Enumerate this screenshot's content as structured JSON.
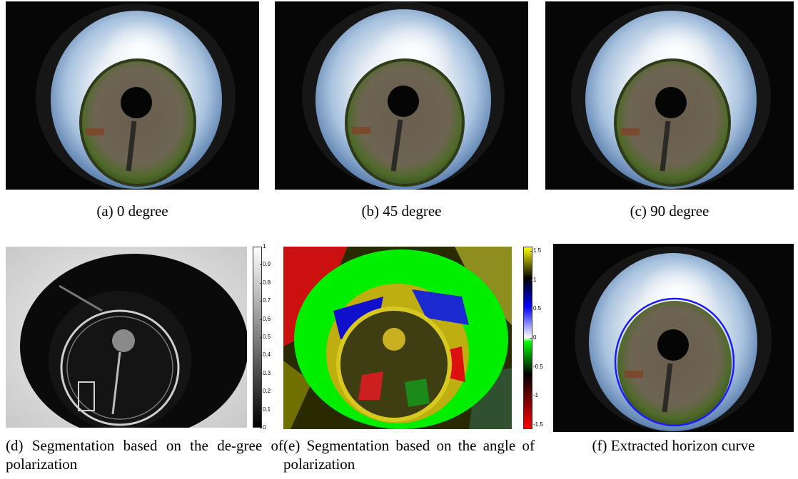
{
  "figure": {
    "panels": [
      {
        "id": "a",
        "caption": "(a) 0 degree"
      },
      {
        "id": "b",
        "caption": "(b) 45 degree"
      },
      {
        "id": "c",
        "caption": "(c) 90 degree"
      },
      {
        "id": "d",
        "caption": "(d) Segmentation based on the de-gree of polarization"
      },
      {
        "id": "e",
        "caption": "(e) Segmentation based on the angle of polarization"
      },
      {
        "id": "f",
        "caption": "(f) Extracted horizon curve"
      }
    ],
    "colorbar_dop": {
      "ticks": [
        "1",
        "0.9",
        "0.8",
        "0.7",
        "0.6",
        "0.5",
        "0.4",
        "0.3",
        "0.2",
        "0.1",
        "0"
      ],
      "colors": [
        "#ffffff",
        "#000000"
      ]
    },
    "colorbar_aop": {
      "ticks": [
        "1.5",
        "1",
        "0.5",
        "0",
        "-0.5",
        "-1",
        "-1.5"
      ],
      "colors": [
        "#ffff00",
        "#000000",
        "#0000ff",
        "#ffffff",
        "#00ff00",
        "#000000",
        "#ff0000"
      ]
    },
    "horizon_curve_color": "#1a1aff"
  }
}
